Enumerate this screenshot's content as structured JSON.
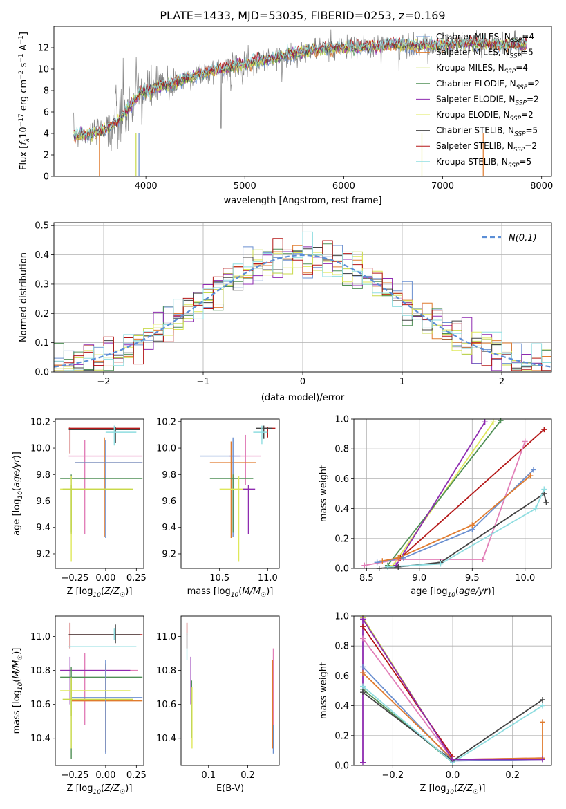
{
  "figure_title": "PLATE=1433, MJD=53035, FIBERID=0253, z=0.169",
  "colors": [
    "#6a8fd0",
    "#e07b2e",
    "#c8d94a",
    "#4f8f55",
    "#8e2bb0",
    "#dfe85a",
    "#444444",
    "#b51818",
    "#8fdde0",
    "#e27fb8"
  ],
  "chart_data": [
    {
      "id": "spectrum",
      "type": "line",
      "xlabel": "wavelength [Angstrom, rest frame]",
      "ylabel": "Flux [f_λ10^-17 erg cm^-2 s^-1 A^-1]",
      "xlim": [
        3070,
        8100
      ],
      "ylim": [
        0,
        14
      ],
      "xticks": [
        4000,
        5000,
        6000,
        7000,
        8000
      ],
      "yticks": [
        0,
        2,
        4,
        6,
        8,
        10,
        12
      ],
      "data_color": "#808080",
      "continuum": {
        "x": [
          3270,
          3400,
          3550,
          3700,
          3850,
          3950,
          4100,
          4300,
          4500,
          4700,
          4900,
          5100,
          5300,
          5500,
          5700,
          5900,
          6100,
          6300,
          6500,
          6700,
          6900,
          7100,
          7300,
          7500,
          7700,
          7850
        ],
        "y": [
          3.8,
          3.9,
          4.2,
          5.0,
          6.6,
          7.8,
          8.2,
          8.8,
          9.4,
          9.9,
          10.3,
          10.7,
          11.0,
          11.5,
          11.8,
          12.0,
          12.0,
          12.1,
          12.3,
          12.2,
          12.2,
          12.3,
          12.4,
          12.3,
          12.3,
          12.4
        ]
      },
      "legend": [
        {
          "label": "Chabrier MILES, N",
          "sub": "SSP",
          "suffix": "=4",
          "color": "#6a8fd0"
        },
        {
          "label": "Salpeter MILES, N",
          "sub": "SSP",
          "suffix": "=5",
          "color": "#e07b2e"
        },
        {
          "label": "Kroupa MILES, N",
          "sub": "SSP",
          "suffix": "=4",
          "color": "#c8d94a"
        },
        {
          "label": "Chabrier ELODIE, N",
          "sub": "SSP",
          "suffix": "=2",
          "color": "#4f8f55"
        },
        {
          "label": "Salpeter ELODIE, N",
          "sub": "SSP",
          "suffix": "=2",
          "color": "#8e2bb0"
        },
        {
          "label": "Kroupa ELODIE, N",
          "sub": "SSP",
          "suffix": "=2",
          "color": "#dfe85a"
        },
        {
          "label": "Chabrier STELIB, N",
          "sub": "SSP",
          "suffix": "=5",
          "color": "#444444"
        },
        {
          "label": "Salpeter STELIB, N",
          "sub": "SSP",
          "suffix": "=2",
          "color": "#b51818"
        },
        {
          "label": "Kroupa STELIB, N",
          "sub": "SSP",
          "suffix": "=5",
          "color": "#8fdde0"
        }
      ]
    },
    {
      "id": "residuals",
      "type": "step",
      "xlabel": "(data-model)/error",
      "ylabel": "Normed distribution",
      "xlim": [
        -2.5,
        2.5
      ],
      "ylim": [
        0,
        0.51
      ],
      "xticks": [
        -2,
        -1,
        0,
        1,
        2
      ],
      "yticks": [
        0.0,
        0.1,
        0.2,
        0.3,
        0.4,
        0.5
      ],
      "grid": true,
      "legend_label": "N(0,1)",
      "bin_width": 0.1
    },
    {
      "id": "age_vs_Z",
      "type": "errorbar",
      "xlabel": "Z [log10(Z/Z☉)]",
      "ylabel": "age  [log10(age/yr)]",
      "xlim": [
        -0.41,
        0.31
      ],
      "ylim": [
        9.09,
        10.22
      ],
      "xticks": [
        -0.25,
        0.0,
        0.25
      ],
      "yticks": [
        9.2,
        9.4,
        9.6,
        9.8,
        10.0,
        10.2
      ],
      "points": [
        {
          "x": -0.29,
          "y": 10.15,
          "x_lo": -0.3,
          "x_hi": 0.28,
          "y_lo": 9.96,
          "y_hi": 10.16,
          "c": "#b51818"
        },
        {
          "x": 0.08,
          "y": 10.14,
          "x_lo": -0.3,
          "x_hi": 0.28,
          "y_lo": 10.04,
          "y_hi": 10.16,
          "c": "#444444"
        },
        {
          "x": 0.07,
          "y": 10.12,
          "x_lo": 0.0,
          "x_hi": 0.25,
          "y_lo": 10.02,
          "y_hi": 10.17,
          "c": "#8fdde0"
        },
        {
          "x": -0.17,
          "y": 9.94,
          "x_lo": -0.3,
          "x_hi": 0.3,
          "y_lo": 9.35,
          "y_hi": 10.06,
          "c": "#e27fb8"
        },
        {
          "x": -0.01,
          "y": 9.89,
          "x_lo": -0.25,
          "x_hi": 0.3,
          "y_lo": 9.33,
          "y_hi": 10.08,
          "c": "#e07b2e"
        },
        {
          "x": 0.0,
          "y": 9.89,
          "x_lo": -0.25,
          "x_hi": 0.3,
          "y_lo": 9.32,
          "y_hi": 10.06,
          "c": "#6a8fd0"
        },
        {
          "x": -0.28,
          "y": 9.77,
          "x_lo": -0.37,
          "x_hi": 0.3,
          "y_lo": 9.36,
          "y_hi": 9.8,
          "c": "#4f8f55"
        },
        {
          "x": -0.28,
          "y": 9.69,
          "x_lo": -0.37,
          "x_hi": 0.2,
          "y_lo": 9.14,
          "y_hi": 9.79,
          "c": "#dfe85a"
        },
        {
          "x": -0.28,
          "y": 9.69,
          "x_lo": -0.35,
          "x_hi": 0.22,
          "y_lo": 9.35,
          "y_hi": 9.72,
          "c": "#c8d94a"
        }
      ]
    },
    {
      "id": "age_vs_mass",
      "type": "errorbar",
      "xlabel": "mass [log10(M/M☉)]",
      "ylabel": "",
      "xlim": [
        10.1,
        11.12
      ],
      "ylim": [
        9.09,
        10.22
      ],
      "xticks": [
        10.5,
        11.0
      ],
      "yticks": [
        9.2,
        9.4,
        9.6,
        9.8,
        10.0,
        10.2
      ],
      "points": [
        {
          "x": 11.0,
          "y": 10.15,
          "x_lo": 10.95,
          "x_hi": 11.08,
          "y_lo": 10.08,
          "y_hi": 10.16,
          "c": "#b51818"
        },
        {
          "x": 10.96,
          "y": 10.15,
          "x_lo": 10.88,
          "x_hi": 11.05,
          "y_lo": 10.07,
          "y_hi": 10.17,
          "c": "#444444"
        },
        {
          "x": 10.94,
          "y": 10.12,
          "x_lo": 10.85,
          "x_hi": 11.0,
          "y_lo": 10.03,
          "y_hi": 10.17,
          "c": "#8fdde0"
        },
        {
          "x": 10.77,
          "y": 9.94,
          "x_lo": 10.6,
          "x_hi": 10.93,
          "y_lo": 9.72,
          "y_hi": 10.1,
          "c": "#e27fb8"
        },
        {
          "x": 10.62,
          "y": 9.89,
          "x_lo": 10.4,
          "x_hi": 10.88,
          "y_lo": 9.32,
          "y_hi": 10.05,
          "c": "#e07b2e"
        },
        {
          "x": 10.64,
          "y": 9.94,
          "x_lo": 10.3,
          "x_hi": 10.72,
          "y_lo": 9.33,
          "y_hi": 10.08,
          "c": "#6a8fd0"
        },
        {
          "x": 10.64,
          "y": 9.77,
          "x_lo": 10.4,
          "x_hi": 10.85,
          "y_lo": 9.36,
          "y_hi": 9.8,
          "c": "#4f8f55"
        },
        {
          "x": 10.7,
          "y": 9.69,
          "x_lo": 10.5,
          "x_hi": 10.82,
          "y_lo": 9.14,
          "y_hi": 9.79,
          "c": "#dfe85a"
        },
        {
          "x": 10.8,
          "y": 9.69,
          "x_lo": 10.74,
          "x_hi": 10.87,
          "y_lo": 9.35,
          "y_hi": 9.72,
          "c": "#8e2bb0"
        }
      ]
    },
    {
      "id": "mass_vs_Z",
      "type": "errorbar",
      "xlabel": "Z [log10(Z/Z☉)]",
      "ylabel": "mass [log10(M/M☉)]",
      "xlim": [
        -0.41,
        0.31
      ],
      "ylim": [
        10.24,
        11.12
      ],
      "xticks": [
        -0.25,
        0.0,
        0.25
      ],
      "yticks": [
        10.4,
        10.6,
        10.8,
        11.0
      ],
      "points": [
        {
          "x": -0.29,
          "y": 11.01,
          "x_lo": -0.3,
          "x_hi": 0.3,
          "y_lo": 10.93,
          "y_hi": 11.08,
          "c": "#b51818"
        },
        {
          "x": 0.08,
          "y": 11.01,
          "x_lo": -0.3,
          "x_hi": 0.28,
          "y_lo": 10.96,
          "y_hi": 11.07,
          "c": "#444444"
        },
        {
          "x": 0.07,
          "y": 10.94,
          "x_lo": -0.3,
          "x_hi": 0.25,
          "y_lo": 10.98,
          "y_hi": 11.05,
          "c": "#8fdde0"
        },
        {
          "x": -0.17,
          "y": 10.8,
          "x_lo": -0.37,
          "x_hi": 0.26,
          "y_lo": 10.48,
          "y_hi": 10.9,
          "c": "#e27fb8"
        },
        {
          "x": -0.29,
          "y": 10.8,
          "x_lo": -0.37,
          "x_hi": 0.2,
          "y_lo": 10.6,
          "y_hi": 10.88,
          "c": "#8e2bb0"
        },
        {
          "x": -0.28,
          "y": 10.76,
          "x_lo": -0.37,
          "x_hi": 0.3,
          "y_lo": 10.28,
          "y_hi": 10.82,
          "c": "#4f8f55"
        },
        {
          "x": 0.0,
          "y": 10.62,
          "x_lo": -0.28,
          "x_hi": 0.3,
          "y_lo": 10.32,
          "y_hi": 10.84,
          "c": "#e07b2e"
        },
        {
          "x": 0.0,
          "y": 10.64,
          "x_lo": -0.28,
          "x_hi": 0.3,
          "y_lo": 10.31,
          "y_hi": 10.86,
          "c": "#6a8fd0"
        },
        {
          "x": -0.28,
          "y": 10.68,
          "x_lo": -0.37,
          "x_hi": 0.2,
          "y_lo": 10.34,
          "y_hi": 10.74,
          "c": "#dfe85a"
        },
        {
          "x": -0.28,
          "y": 10.63,
          "x_lo": -0.35,
          "x_hi": 0.22,
          "y_lo": 10.53,
          "y_hi": 10.76,
          "c": "#c8d94a"
        }
      ]
    },
    {
      "id": "mass_vs_ebv",
      "type": "errorbar",
      "xlabel": "E(B-V)",
      "ylabel": "",
      "xlim": [
        0.03,
        0.28
      ],
      "ylim": [
        10.24,
        11.12
      ],
      "xticks": [
        0.1,
        0.2
      ],
      "yticks": [
        10.4,
        10.6,
        10.8,
        11.0
      ],
      "points": [
        {
          "x": 0.045,
          "y": 11.01,
          "x_lo": 0.044,
          "x_hi": 0.046,
          "y_lo": 10.93,
          "y_hi": 11.08,
          "c": "#b51818"
        },
        {
          "x": 0.045,
          "y": 10.94,
          "x_lo": 0.044,
          "x_hi": 0.046,
          "y_lo": 10.86,
          "y_hi": 11.02,
          "c": "#8fdde0"
        },
        {
          "x": 0.055,
          "y": 10.8,
          "x_lo": 0.054,
          "x_hi": 0.056,
          "y_lo": 10.6,
          "y_hi": 10.88,
          "c": "#8e2bb0"
        },
        {
          "x": 0.057,
          "y": 10.68,
          "x_lo": 0.056,
          "x_hi": 0.058,
          "y_lo": 10.4,
          "y_hi": 10.74,
          "c": "#4f8f55"
        },
        {
          "x": 0.058,
          "y": 10.6,
          "x_lo": 0.057,
          "x_hi": 0.059,
          "y_lo": 10.34,
          "y_hi": 10.7,
          "c": "#dfe85a"
        },
        {
          "x": 0.265,
          "y": 10.64,
          "x_lo": 0.264,
          "x_hi": 0.266,
          "y_lo": 10.31,
          "y_hi": 10.8,
          "c": "#6a8fd0"
        },
        {
          "x": 0.265,
          "y": 10.7,
          "x_lo": 0.264,
          "x_hi": 0.266,
          "y_lo": 10.48,
          "y_hi": 10.93,
          "c": "#e27fb8"
        },
        {
          "x": 0.263,
          "y": 10.62,
          "x_lo": 0.262,
          "x_hi": 0.264,
          "y_lo": 10.34,
          "y_hi": 10.86,
          "c": "#e07b2e"
        }
      ]
    },
    {
      "id": "weight_vs_age",
      "type": "line",
      "xlabel": "age  [log10(age/yr)]",
      "ylabel": "mass weight",
      "xlim": [
        8.38,
        10.25
      ],
      "ylim": [
        0,
        1.0
      ],
      "xticks": [
        8.5,
        9.0,
        9.5,
        10.0
      ],
      "yticks": [
        0.0,
        0.2,
        0.4,
        0.6,
        0.8,
        1.0
      ],
      "grid": true,
      "series": [
        {
          "c": "#dfe85a",
          "x": [
            8.75,
            9.7
          ],
          "y": [
            0.02,
            0.98
          ]
        },
        {
          "c": "#4f8f55",
          "x": [
            8.7,
            9.77
          ],
          "y": [
            0.02,
            0.99
          ]
        },
        {
          "c": "#8e2bb0",
          "x": [
            8.78,
            9.62
          ],
          "y": [
            0.02,
            0.98
          ]
        },
        {
          "c": "#b51818",
          "x": [
            8.82,
            10.18
          ],
          "y": [
            0.07,
            0.93
          ]
        },
        {
          "c": "#e27fb8",
          "x": [
            8.48,
            8.8,
            9.6,
            10.0
          ],
          "y": [
            0.02,
            0.06,
            0.06,
            0.85
          ]
        },
        {
          "c": "#6a8fd0",
          "x": [
            8.6,
            8.85,
            9.5,
            10.08
          ],
          "y": [
            0.04,
            0.07,
            0.26,
            0.66
          ]
        },
        {
          "c": "#e07b2e",
          "x": [
            8.65,
            8.8,
            9.5,
            10.05
          ],
          "y": [
            0.05,
            0.07,
            0.29,
            0.62
          ]
        },
        {
          "c": "#444444",
          "x": [
            8.62,
            8.8,
            9.2,
            10.18,
            10.2
          ],
          "y": [
            0.0,
            0.01,
            0.04,
            0.5,
            0.44
          ]
        },
        {
          "c": "#8fdde0",
          "x": [
            8.7,
            9.2,
            10.1,
            10.18
          ],
          "y": [
            0.01,
            0.03,
            0.4,
            0.53
          ]
        }
      ]
    },
    {
      "id": "weight_vs_Z",
      "type": "line",
      "xlabel": "Z [log10(Z/Z☉)]",
      "ylabel": "mass weight",
      "xlim": [
        -0.33,
        0.33
      ],
      "ylim": [
        0,
        1.0
      ],
      "xticks": [
        -0.2,
        0.0,
        0.2
      ],
      "yticks": [
        0.0,
        0.2,
        0.4,
        0.6,
        0.8,
        1.0
      ],
      "grid": true,
      "series": [
        {
          "c": "#c8d94a",
          "x": [
            -0.3,
            0.0
          ],
          "y": [
            0.99,
            0.04
          ]
        },
        {
          "c": "#b51818",
          "x": [
            -0.3,
            0.0
          ],
          "y": [
            0.93,
            0.06
          ]
        },
        {
          "c": "#e27fb8",
          "x": [
            -0.3,
            0.0,
            0.3
          ],
          "y": [
            0.85,
            0.04,
            0.05
          ]
        },
        {
          "c": "#6a8fd0",
          "x": [
            -0.3,
            0.0,
            0.3
          ],
          "y": [
            0.66,
            0.03,
            0.04
          ]
        },
        {
          "c": "#e07b2e",
          "x": [
            -0.3,
            0.0,
            0.3,
            0.3
          ],
          "y": [
            0.62,
            0.04,
            0.05,
            0.29
          ]
        },
        {
          "c": "#4f8f55",
          "x": [
            -0.3,
            0.0
          ],
          "y": [
            0.51,
            0.02
          ]
        },
        {
          "c": "#444444",
          "x": [
            -0.3,
            0.0,
            0.3
          ],
          "y": [
            0.49,
            0.03,
            0.44
          ]
        },
        {
          "c": "#8fdde0",
          "x": [
            -0.3,
            0.0,
            0.3
          ],
          "y": [
            0.53,
            0.02,
            0.4
          ]
        },
        {
          "c": "#8e2bb0",
          "x": [
            -0.3,
            -0.3,
            0.0,
            0.3
          ],
          "y": [
            0.02,
            0.98,
            0.04,
            0.04
          ]
        }
      ]
    }
  ]
}
